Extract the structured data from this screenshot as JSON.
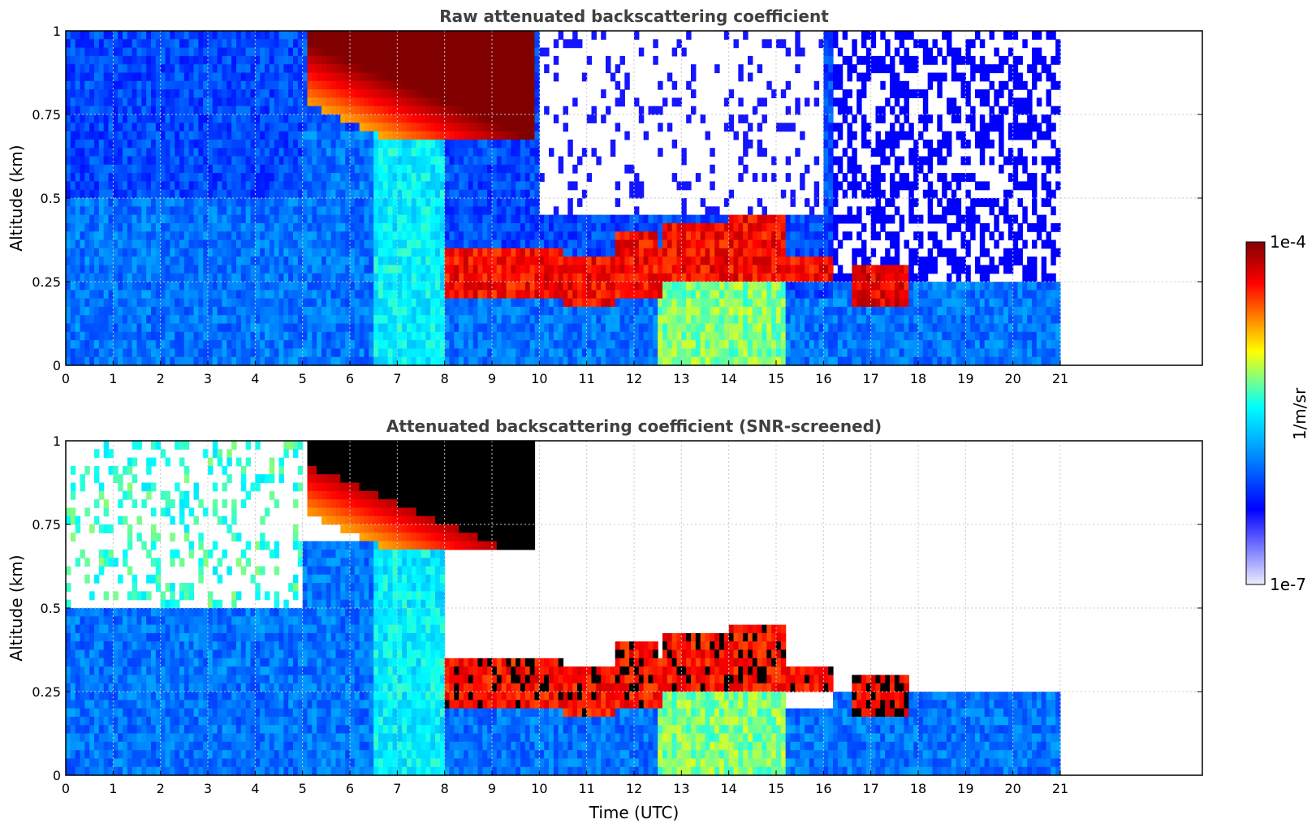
{
  "chart_data": [
    {
      "type": "heatmap",
      "title": "Raw attenuated backscattering coefficient",
      "xlabel": "",
      "ylabel": "Altitude (km)",
      "xlim": [
        0,
        24
      ],
      "ylim": [
        0,
        1
      ],
      "xticks": [
        "0",
        "1",
        "2",
        "3",
        "4",
        "5",
        "6",
        "7",
        "8",
        "9",
        "10",
        "11",
        "12",
        "13",
        "14",
        "15",
        "16",
        "17",
        "18",
        "19",
        "20",
        "21"
      ],
      "yticks": [
        "0",
        "0.25",
        "0.5",
        "0.75",
        "1"
      ],
      "grid": true,
      "data_end_hour": 21,
      "features": [
        {
          "name": "dense cloud layer descending",
          "t_start": 5.1,
          "t_end": 9.9,
          "alt_top": 1.0,
          "alt_bottom": 0.7
        },
        {
          "name": "low cloud band",
          "t_start": 8.0,
          "t_end": 16.1,
          "alt_top": 0.45,
          "alt_bottom": 0.18
        },
        {
          "name": "low cloud",
          "t_start": 16.6,
          "t_end": 17.8,
          "alt_top": 0.3,
          "alt_bottom": 0.18
        }
      ]
    },
    {
      "type": "heatmap",
      "title": "Attenuated backscattering coefficient (SNR-screened)",
      "xlabel": "Time (UTC)",
      "ylabel": "Altitude (km)",
      "xlim": [
        0,
        24
      ],
      "ylim": [
        0,
        1
      ],
      "xticks": [
        "0",
        "1",
        "2",
        "3",
        "4",
        "5",
        "6",
        "7",
        "8",
        "9",
        "10",
        "11",
        "12",
        "13",
        "14",
        "15",
        "16",
        "17",
        "18",
        "19",
        "20",
        "21"
      ],
      "yticks": [
        "0",
        "0.25",
        "0.5",
        "0.75",
        "1"
      ],
      "grid": true,
      "data_end_hour": 21,
      "features": [
        {
          "name": "saturated cloud (black)",
          "t_start": 5.2,
          "t_end": 9.9,
          "alt_top": 1.0,
          "alt_bottom": 0.7
        },
        {
          "name": "screened boundary layer top",
          "t_start": 16.1,
          "t_end": 21.0,
          "alt_top": 0.3,
          "alt_bottom": 0.0
        }
      ]
    }
  ],
  "colorbar": {
    "label": "1/m/sr",
    "max_label": "1e-4",
    "min_label": "1e-7",
    "min": 1e-07,
    "max": 0.0001,
    "scale": "log",
    "colors": [
      "#ececff",
      "#0000ff",
      "#00a0ff",
      "#00ffff",
      "#a0ff60",
      "#ffff00",
      "#ff8000",
      "#ff0000",
      "#800000"
    ]
  }
}
